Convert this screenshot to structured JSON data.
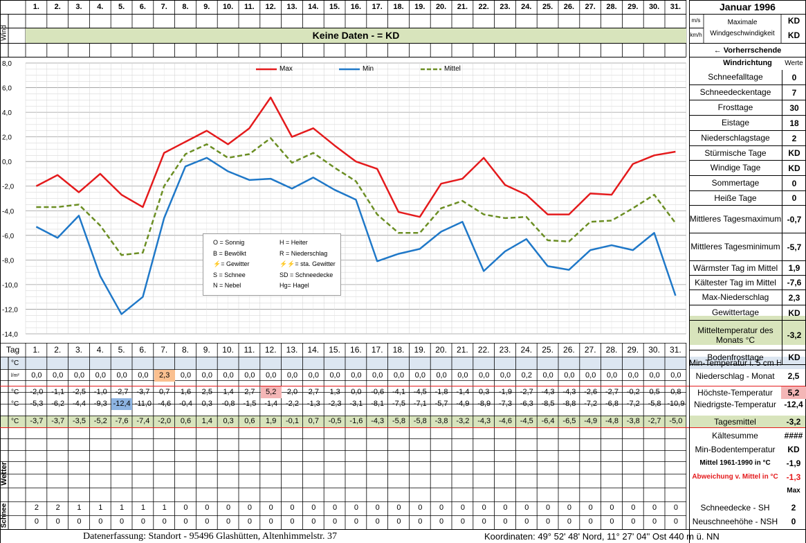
{
  "month_title": "Januar 1996",
  "days": [
    "1.",
    "2.",
    "3.",
    "4.",
    "5.",
    "6.",
    "7.",
    "8.",
    "9.",
    "10.",
    "11.",
    "12.",
    "13.",
    "14.",
    "15.",
    "16.",
    "17.",
    "18.",
    "19.",
    "20.",
    "21.",
    "22.",
    "23.",
    "24.",
    "25.",
    "26.",
    "27.",
    "28.",
    "29.",
    "30.",
    "31."
  ],
  "wind": {
    "label": "Wind",
    "unit_ms": "m/s",
    "unit_kmh": "km/h",
    "max_label": "Maximale Windgeschwindigkeit",
    "max_ms": "KD",
    "max_kmh": "KD",
    "no_data": "Keine Daten -  = KD",
    "direction_label": "← Vorherrschende Windrichtung"
  },
  "legend": {
    "max": "Max",
    "min": "Min",
    "mittel": "Mittel"
  },
  "weather_key": [
    [
      "O = Sonnig",
      "H = Heiter"
    ],
    [
      "B = Bewölkt",
      "R = Niederschlag"
    ],
    [
      "= Gewitter",
      "= sta. Gewitter"
    ],
    [
      "S = Schnee",
      "SD = Schneedecke"
    ],
    [
      "N = Nebel",
      "Hg= Hagel"
    ]
  ],
  "stats_header": "Werte",
  "stats": [
    {
      "label": "Schneefalltage",
      "value": "0"
    },
    {
      "label": "Schneedeckentage",
      "value": "7"
    },
    {
      "label": "Frosttage",
      "value": "30"
    },
    {
      "label": "Eistage",
      "value": "18"
    },
    {
      "label": "Niederschlagstage",
      "value": "2"
    },
    {
      "label": "Stürmische Tage",
      "value": "KD"
    },
    {
      "label": "Windige Tage",
      "value": "KD"
    },
    {
      "label": "Sommertage",
      "value": "0"
    },
    {
      "label": "Heiße Tage",
      "value": "0"
    },
    {
      "label": "Mittleres Tagesmaximum",
      "value": "-0,7"
    },
    {
      "label": "Mittleres Tagesminimum",
      "value": "-5,7"
    },
    {
      "label": "Wärmster Tag im Mittel",
      "value": "1,9"
    },
    {
      "label": "Kältester Tag im Mittel",
      "value": "-7,6"
    },
    {
      "label": "Max-Niederschlag",
      "value": "2,3"
    },
    {
      "label": "Gewittertage",
      "value": "KD"
    },
    {
      "label": "Mitteltemperatur des Monats °C",
      "value": "-3,2"
    },
    {
      "label": "Bodenfrosttage",
      "value": "KD"
    }
  ],
  "table": {
    "tag_label": "Tag",
    "bottom_rows": [
      {
        "label": "Min-Temperatur i. 5 cm Höhe",
        "value": ""
      },
      {
        "label": "Niederschlag - Monat",
        "value": "2,5"
      },
      {
        "label": "Höchste-Temperatur",
        "value": "5,2"
      },
      {
        "label": "Niedrigste-Temperatur",
        "value": "-12,4"
      },
      {
        "label": "Tagesmittel",
        "value": "-3,2"
      },
      {
        "label": "Kältesumme",
        "value": "####"
      },
      {
        "label": "Min-Bodentemperatur",
        "value": "KD"
      },
      {
        "label": "Mittel 1961-1990 in °C",
        "value": "-1,9"
      },
      {
        "label": "Abweichung v. Mittel in °C",
        "value": "-1,3"
      },
      {
        "label": "",
        "value": "Max"
      },
      {
        "label": "Schneedecke -  SH",
        "value": "2"
      },
      {
        "label": "Neuschneehöhe - NSH",
        "value": "0"
      }
    ],
    "unit_celsius": "°C",
    "unit_precip": "l/m²",
    "wetter_label": "Wetter",
    "schnee_label": "Schnee",
    "precip": [
      "0,0",
      "0,0",
      "0,0",
      "0,0",
      "0,0",
      "0,0",
      "2,3",
      "0,0",
      "0,0",
      "0,0",
      "0,0",
      "0,0",
      "0,0",
      "0,0",
      "0,0",
      "0,0",
      "0,0",
      "0,0",
      "0,0",
      "0,0",
      "0,0",
      "0,0",
      "0,0",
      "0,2",
      "0,0",
      "0,0",
      "0,0",
      "0,0",
      "0,0",
      "0,0",
      "0,0"
    ],
    "tmax": [
      "-2,0",
      "-1,1",
      "-2,5",
      "-1,0",
      "-2,7",
      "-3,7",
      "0,7",
      "1,6",
      "2,5",
      "1,4",
      "2,7",
      "5,2",
      "2,0",
      "2,7",
      "1,3",
      "0,0",
      "-0,6",
      "-4,1",
      "-4,5",
      "-1,8",
      "-1,4",
      "0,3",
      "-1,9",
      "-2,7",
      "-4,3",
      "-4,3",
      "-2,6",
      "-2,7",
      "-0,2",
      "0,5",
      "0,8"
    ],
    "tmin": [
      "-5,3",
      "-6,2",
      "-4,4",
      "-9,3",
      "-12,4",
      "-11,0",
      "-4,6",
      "-0,4",
      "0,3",
      "-0,8",
      "-1,5",
      "-1,4",
      "-2,2",
      "-1,3",
      "-2,3",
      "-3,1",
      "-8,1",
      "-7,5",
      "-7,1",
      "-5,7",
      "-4,9",
      "-8,9",
      "-7,3",
      "-6,3",
      "-8,5",
      "-8,8",
      "-7,2",
      "-6,8",
      "-7,2",
      "-5,8",
      "-10,9"
    ],
    "tmean": [
      "-3,7",
      "-3,7",
      "-3,5",
      "-5,2",
      "-7,6",
      "-7,4",
      "-2,0",
      "0,6",
      "1,4",
      "0,3",
      "0,6",
      "1,9",
      "-0,1",
      "0,7",
      "-0,5",
      "-1,6",
      "-4,3",
      "-5,8",
      "-5,8",
      "-3,8",
      "-3,2",
      "-4,3",
      "-4,6",
      "-4,5",
      "-6,4",
      "-6,5",
      "-4,9",
      "-4,8",
      "-3,8",
      "-2,7",
      "-5,0"
    ],
    "snow_sh": [
      "2",
      "2",
      "1",
      "1",
      "1",
      "1",
      "1",
      "0",
      "0",
      "0",
      "0",
      "0",
      "0",
      "0",
      "0",
      "0",
      "0",
      "0",
      "0",
      "0",
      "0",
      "0",
      "0",
      "0",
      "0",
      "0",
      "0",
      "0",
      "0",
      "0",
      "0"
    ],
    "snow_nsh": [
      "0",
      "0",
      "0",
      "0",
      "0",
      "0",
      "0",
      "0",
      "0",
      "0",
      "0",
      "0",
      "0",
      "0",
      "0",
      "0",
      "0",
      "0",
      "0",
      "0",
      "0",
      "0",
      "0",
      "0",
      "0",
      "0",
      "0",
      "0",
      "0",
      "0",
      "0"
    ]
  },
  "footer": {
    "left": "Datenerfassung:  Standort -  95496  Glashütten, Altenhimmelstr. 37",
    "right": "Koordinaten:  49° 52' 48' Nord,  11° 27' 04'' Ost   440 m ü. NN"
  },
  "colors": {
    "max": "#e41a1c",
    "min": "#1f78c8",
    "mittel": "#6b8e23",
    "grid": "#bfbfbf",
    "green_band": "#d8e4bc",
    "blue_band": "#dce6f1"
  },
  "chart_data": {
    "type": "line",
    "x": [
      1,
      2,
      3,
      4,
      5,
      6,
      7,
      8,
      9,
      10,
      11,
      12,
      13,
      14,
      15,
      16,
      17,
      18,
      19,
      20,
      21,
      22,
      23,
      24,
      25,
      26,
      27,
      28,
      29,
      30,
      31
    ],
    "ylim": [
      -14,
      8
    ],
    "yticks": [
      "8,0",
      "6,0",
      "4,0",
      "2,0",
      "0,0",
      "-2,0",
      "-4,0",
      "-6,0",
      "-8,0",
      "-10,0",
      "-12,0",
      "-14,0"
    ],
    "grid": true,
    "legend_position": "top",
    "series": [
      {
        "name": "Max",
        "style": "solid",
        "values": [
          -2.0,
          -1.1,
          -2.5,
          -1.0,
          -2.7,
          -3.7,
          0.7,
          1.6,
          2.5,
          1.4,
          2.7,
          5.2,
          2.0,
          2.7,
          1.3,
          0.0,
          -0.6,
          -4.1,
          -4.5,
          -1.8,
          -1.4,
          0.3,
          -1.9,
          -2.7,
          -4.3,
          -4.3,
          -2.6,
          -2.7,
          -0.2,
          0.5,
          0.8
        ]
      },
      {
        "name": "Min",
        "style": "solid",
        "values": [
          -5.3,
          -6.2,
          -4.4,
          -9.3,
          -12.4,
          -11.0,
          -4.6,
          -0.4,
          0.3,
          -0.8,
          -1.5,
          -1.4,
          -2.2,
          -1.3,
          -2.3,
          -3.1,
          -8.1,
          -7.5,
          -7.1,
          -5.7,
          -4.9,
          -8.9,
          -7.3,
          -6.3,
          -8.5,
          -8.8,
          -7.2,
          -6.8,
          -7.2,
          -5.8,
          -10.9
        ]
      },
      {
        "name": "Mittel",
        "style": "dashed",
        "values": [
          -3.7,
          -3.7,
          -3.5,
          -5.2,
          -7.6,
          -7.4,
          -2.0,
          0.6,
          1.4,
          0.3,
          0.6,
          1.9,
          -0.1,
          0.7,
          -0.5,
          -1.6,
          -4.3,
          -5.8,
          -5.8,
          -3.8,
          -3.2,
          -4.3,
          -4.6,
          -4.5,
          -6.4,
          -6.5,
          -4.9,
          -4.8,
          -3.8,
          -2.7,
          -5.0
        ]
      }
    ]
  }
}
